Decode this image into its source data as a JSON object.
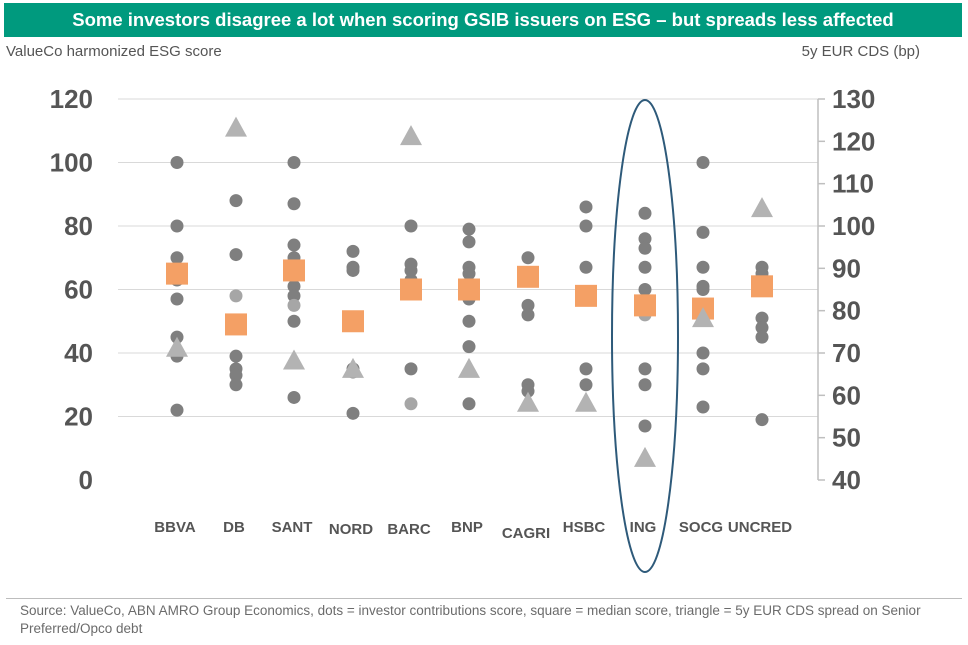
{
  "title": "Some investors disagree a lot when scoring GSIB issuers on ESG – but spreads less affected",
  "left_axis_title": "ValueCo harmonized ESG score",
  "right_axis_title": "5y EUR CDS (bp)",
  "source": "Source: ValueCo, ABN AMRO Group Economics, dots = investor contributions score, square = median score, triangle = 5y EUR CDS spread on Senior Preferred/Opco debt",
  "colors": {
    "title_bg": "#009a7e",
    "dot": "#7f7f7f",
    "light_dot": "#a6a6a6",
    "square": "#f4a065",
    "triangle": "#b3b3b3",
    "highlight_ellipse": "#2e5a7a",
    "axis_text": "#555555"
  },
  "chart_data": {
    "type": "scatter",
    "categories": [
      "BBVA",
      "DB",
      "SANT",
      "NORD",
      "BARC",
      "BNP",
      "CAGRI",
      "HSBC",
      "ING",
      "SOCG",
      "UNCRED"
    ],
    "left_axis": {
      "min": 0,
      "max": 120,
      "ticks": [
        0,
        20,
        40,
        60,
        80,
        100,
        120
      ]
    },
    "right_axis": {
      "min": 40,
      "max": 130,
      "ticks": [
        40,
        50,
        60,
        70,
        80,
        90,
        100,
        110,
        120,
        130
      ]
    },
    "series": [
      {
        "name": "investor contributions score",
        "marker": "dot",
        "axis": "left",
        "values": [
          [
            100,
            80,
            70,
            63,
            57,
            45,
            39,
            22
          ],
          [
            88,
            71,
            39,
            35,
            33,
            30
          ],
          [
            100,
            87,
            74,
            70,
            61,
            58,
            50,
            26
          ],
          [
            72,
            67,
            66,
            35,
            34,
            21
          ],
          [
            80,
            68,
            66,
            63,
            35
          ],
          [
            79,
            75,
            67,
            65,
            57,
            50,
            42,
            24
          ],
          [
            70,
            55,
            52,
            30,
            28
          ],
          [
            86,
            80,
            67,
            59,
            35,
            30
          ],
          [
            84,
            76,
            73,
            67,
            60,
            35,
            30,
            17
          ],
          [
            100,
            78,
            67,
            61,
            60,
            40,
            35,
            23
          ],
          [
            67,
            65,
            51,
            48,
            45,
            19
          ]
        ]
      },
      {
        "name": "investor contributions score (light)",
        "marker": "light-dot",
        "axis": "left",
        "values": [
          [],
          [
            58
          ],
          [
            55
          ],
          [],
          [
            24
          ],
          [],
          [],
          [],
          [
            52
          ],
          [],
          []
        ]
      },
      {
        "name": "median score",
        "marker": "square",
        "axis": "left",
        "values": [
          65,
          49,
          66,
          50,
          60,
          60,
          64,
          58,
          55,
          54,
          61
        ]
      },
      {
        "name": "5y EUR CDS spread on Senior Preferred/Opco debt",
        "marker": "triangle",
        "axis": "right",
        "values": [
          71,
          123,
          68,
          66,
          121,
          66,
          58,
          58,
          45,
          78,
          104
        ]
      }
    ],
    "highlight": {
      "category": "ING",
      "shape": "ellipse"
    }
  }
}
